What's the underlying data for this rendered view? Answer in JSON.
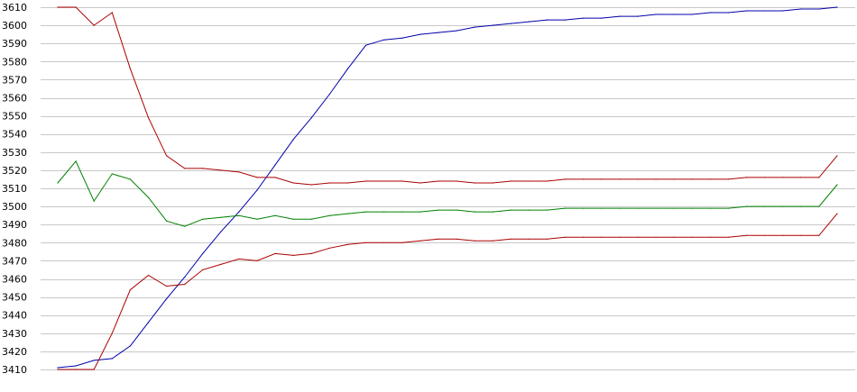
{
  "chart_data": {
    "type": "line",
    "title": "",
    "xlabel": "",
    "ylabel": "",
    "ylim": [
      3410,
      3610
    ],
    "yticks": [
      3410,
      3420,
      3430,
      3440,
      3450,
      3460,
      3470,
      3480,
      3490,
      3500,
      3510,
      3520,
      3530,
      3540,
      3550,
      3560,
      3570,
      3580,
      3590,
      3600,
      3610
    ],
    "grid": true,
    "x": [
      0,
      1,
      2,
      3,
      4,
      5,
      6,
      7,
      8,
      9,
      10,
      11,
      12,
      13,
      14,
      15,
      16,
      17,
      18,
      19,
      20,
      21,
      22,
      23,
      24,
      25,
      26,
      27,
      28,
      29,
      30,
      31,
      32,
      33,
      34,
      35,
      36,
      37,
      38,
      39,
      40,
      41,
      42,
      43
    ],
    "series": [
      {
        "color": "#0000aa",
        "values": [
          3411,
          3412,
          3415,
          3416,
          3423,
          3436,
          3449,
          3461,
          3474,
          3486,
          3497,
          3509,
          3523,
          3537,
          3549,
          3562,
          3576,
          3589,
          3592,
          3593,
          3595,
          3596,
          3597,
          3599,
          3600,
          3601,
          3602,
          3603,
          3603,
          3604,
          3604,
          3605,
          3605,
          3606,
          3606,
          3606,
          3607,
          3607,
          3608,
          3608,
          3608,
          3609,
          3609,
          3610
        ]
      },
      {
        "color": "#aa0000",
        "values": [
          3610,
          3610,
          3600,
          3607,
          3576,
          3549,
          3528,
          3521,
          3521,
          3520,
          3519,
          3516,
          3516,
          3513,
          3512,
          3513,
          3513,
          3514,
          3514,
          3514,
          3513,
          3514,
          3514,
          3513,
          3513,
          3514,
          3514,
          3514,
          3515,
          3515,
          3515,
          3515,
          3515,
          3515,
          3515,
          3515,
          3515,
          3515,
          3516,
          3516,
          3516,
          3516,
          3516,
          3528
        ]
      },
      {
        "color": "#008000",
        "values": [
          3513,
          3525,
          3503,
          3518,
          3515,
          3505,
          3492,
          3489,
          3493,
          3494,
          3495,
          3493,
          3495,
          3493,
          3493,
          3495,
          3496,
          3497,
          3497,
          3497,
          3497,
          3498,
          3498,
          3497,
          3497,
          3498,
          3498,
          3498,
          3499,
          3499,
          3499,
          3499,
          3499,
          3499,
          3499,
          3499,
          3499,
          3499,
          3500,
          3500,
          3500,
          3500,
          3500,
          3512
        ]
      },
      {
        "color": "#aa0000",
        "values": [
          3410,
          3410,
          3410,
          3430,
          3454,
          3462,
          3456,
          3457,
          3465,
          3468,
          3471,
          3470,
          3474,
          3473,
          3474,
          3477,
          3479,
          3480,
          3480,
          3480,
          3481,
          3482,
          3482,
          3481,
          3481,
          3482,
          3482,
          3482,
          3483,
          3483,
          3483,
          3483,
          3483,
          3483,
          3483,
          3483,
          3483,
          3483,
          3484,
          3484,
          3484,
          3484,
          3484,
          3496
        ]
      }
    ]
  }
}
